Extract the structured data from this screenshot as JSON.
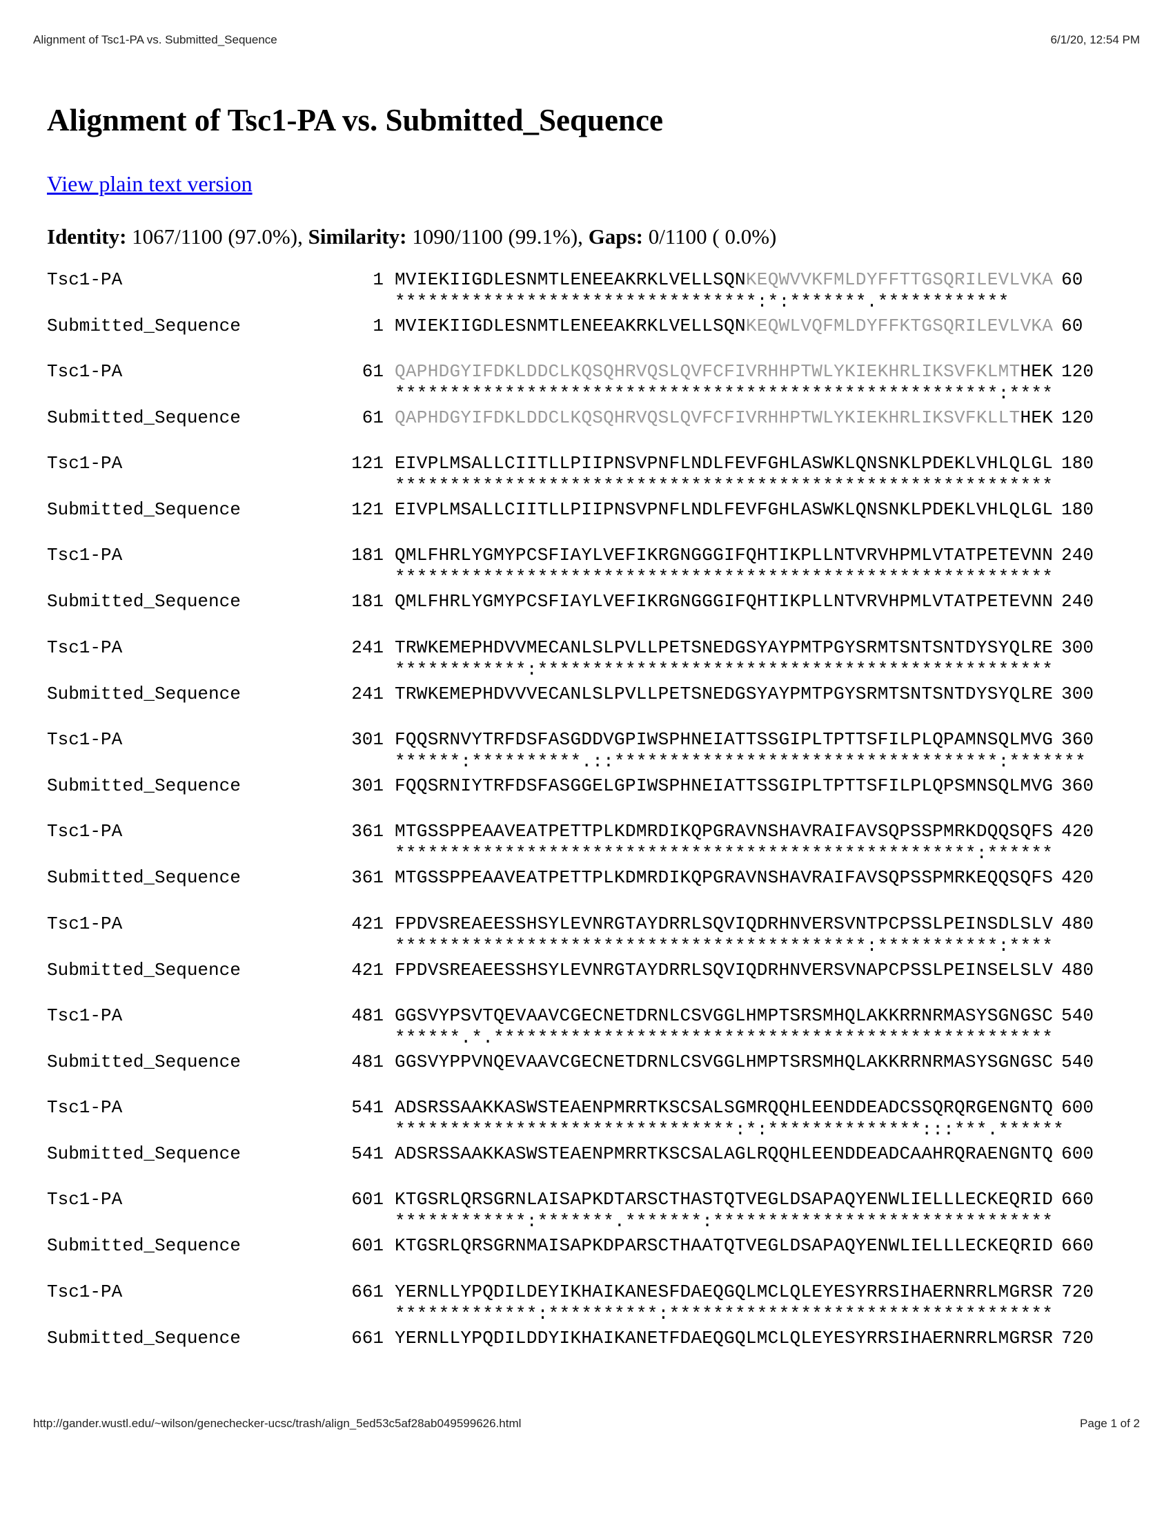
{
  "header": {
    "title": "Alignment of Tsc1-PA vs. Submitted_Sequence",
    "datetime": "6/1/20, 12:54 PM"
  },
  "page_title": "Alignment of Tsc1-PA vs. Submitted_Sequence",
  "plain_link": "View plain text version",
  "stats": {
    "identity_label": "Identity:",
    "identity_value": "1067/1100 (97.0%),",
    "similarity_label": "Similarity:",
    "similarity_value": "1090/1100 (99.1%),",
    "gaps_label": "Gaps:",
    "gaps_value": "0/1100 ( 0.0%)"
  },
  "names": {
    "query": "Tsc1-PA",
    "subject": "Submitted_Sequence"
  },
  "blocks": [
    {
      "start": "1",
      "end": "60",
      "q": [
        [
          "MVIEKIIGDLESNMTLENEEAKRKLVELLSQN",
          ""
        ],
        [
          "KEQWVVKFMLDYFFTTGSQRILEVLVKA",
          "gray"
        ]
      ],
      "m": "*********************************:*:*******.************",
      "s": [
        [
          "MVIEKIIGDLESNMTLENEEAKRKLVELLSQN",
          ""
        ],
        [
          "KEQWLVQFMLDYFFKTGSQRILEVLVKA",
          "gray"
        ]
      ]
    },
    {
      "start": "61",
      "end": "120",
      "q": [
        [
          "QAPHDGYIFDKLDDCLKQSQHRVQSLQVFCFIVRHHPTWLYKIEKHRLIKSVFKLMT",
          "gray"
        ],
        [
          "HEK",
          ""
        ]
      ],
      "m": "*******************************************************:****",
      "s": [
        [
          "QAPHDGYIFDKLDDCLKQSQHRVQSLQVFCFIVRHHPTWLYKIEKHRLIKSVFKLLT",
          "gray"
        ],
        [
          "HEK",
          ""
        ]
      ]
    },
    {
      "start": "121",
      "end": "180",
      "q": [
        [
          "EIVPLMSALLCIITLLPIIPNSVPNFLNDLFEVFGHLASWKLQNSNKLPDEKLVHLQLGL",
          ""
        ]
      ],
      "m": "************************************************************",
      "s": [
        [
          "EIVPLMSALLCIITLLPIIPNSVPNFLNDLFEVFGHLASWKLQNSNKLPDEKLVHLQLGL",
          ""
        ]
      ]
    },
    {
      "start": "181",
      "end": "240",
      "q": [
        [
          "QMLFHRLYGMYPCSFIAYLVEFIKRGNGGGIFQHTIKPLLNTVRVHPMLVTATPETEVNN",
          ""
        ]
      ],
      "m": "************************************************************",
      "s": [
        [
          "QMLFHRLYGMYPCSFIAYLVEFIKRGNGGGIFQHTIKPLLNTVRVHPMLVTATPETEVNN",
          ""
        ]
      ]
    },
    {
      "start": "241",
      "end": "300",
      "q": [
        [
          "TRWKEMEPHDVVMECANLSLPVLLPETSNEDGSYAYPMTPGYSRMTSNTSNTDYSYQLRE",
          ""
        ]
      ],
      "m": "************:***********************************************",
      "s": [
        [
          "TRWKEMEPHDVVVECANLSLPVLLPETSNEDGSYAYPMTPGYSRMTSNTSNTDYSYQLRE",
          ""
        ]
      ]
    },
    {
      "start": "301",
      "end": "360",
      "q": [
        [
          "FQQSRNVYTRFDSFASGDDVGPIWSPHNEIATTSSGIPLTPTTSFILPLQPAMNSQLMVG",
          ""
        ]
      ],
      "m": "******:**********.::***********************************:*******",
      "s": [
        [
          "FQQSRNIYTRFDSFASGGELGPIWSPHNEIATTSSGIPLTPTTSFILPLQPSMNSQLMVG",
          ""
        ]
      ]
    },
    {
      "start": "361",
      "end": "420",
      "q": [
        [
          "MTGSSPPEAAVEATPETTPLKDMRDIKQPGRAVNSHAVRAIFAVSQPSSPMRKDQQSQFS",
          ""
        ]
      ],
      "m": "*****************************************************:******",
      "s": [
        [
          "MTGSSPPEAAVEATPETTPLKDMRDIKQPGRAVNSHAVRAIFAVSQPSSPMRKEQQSQFS",
          ""
        ]
      ]
    },
    {
      "start": "421",
      "end": "480",
      "q": [
        [
          "FPDVSREAEESSHSYLEVNRGTAYDRRLSQVIQDRHNVERSVNTPCPSSLPEINSDLSLV",
          ""
        ]
      ],
      "m": "*******************************************:***********:****",
      "s": [
        [
          "FPDVSREAEESSHSYLEVNRGTAYDRRLSQVIQDRHNVERSVNAPCPSSLPEINSELSLV",
          ""
        ]
      ]
    },
    {
      "start": "481",
      "end": "540",
      "q": [
        [
          "GGSVYPSVTQEVAAVCGECNETDRNLCSVGGLHMPTSRSMHQLAKKRRNRMASYSGNGSC",
          ""
        ]
      ],
      "m": "******.*.***************************************************",
      "s": [
        [
          "GGSVYPPVNQEVAAVCGECNETDRNLCSVGGLHMPTSRSMHQLAKKRRNRMASYSGNGSC",
          ""
        ]
      ]
    },
    {
      "start": "541",
      "end": "600",
      "q": [
        [
          "ADSRSSAAKKASWSTEAENPMRRTKSCSALSGMRQQHLEENDDEADCSSQRQRGENGNTQ",
          ""
        ]
      ],
      "m": "*******************************:*:**************:::***.******",
      "s": [
        [
          "ADSRSSAAKKASWSTEAENPMRRTKSCSALAGLRQQHLEENDDEADCAAHRQRAENGNTQ",
          ""
        ]
      ]
    },
    {
      "start": "601",
      "end": "660",
      "q": [
        [
          "KTGSRLQRSGRNLAISAPKDTARSCTHASTQTVEGLDSAPAQYENWLIELLLECKEQRID",
          ""
        ]
      ],
      "m": "************:*******.*******:*******************************",
      "s": [
        [
          "KTGSRLQRSGRNMAISAPKDPARSCTHAATQTVEGLDSAPAQYENWLIELLLECKEQRID",
          ""
        ]
      ]
    },
    {
      "start": "661",
      "end": "720",
      "q": [
        [
          "YERNLLYPQDILDEYIKHAIKANESFDAEQGQLMCLQLEYESYRRSIHAERNRRLMGRSR",
          ""
        ]
      ],
      "m": "*************:**********:***********************************",
      "s": [
        [
          "YERNLLYPQDILDDYIKHAIKANETFDAEQGQLMCLQLEYESYRRSIHAERNRRLMGRSR",
          ""
        ]
      ]
    }
  ],
  "footer": {
    "url": "http://gander.wustl.edu/~wilson/genechecker-ucsc/trash/align_5ed53c5af28ab049599626.html",
    "page": "Page 1 of 2"
  }
}
